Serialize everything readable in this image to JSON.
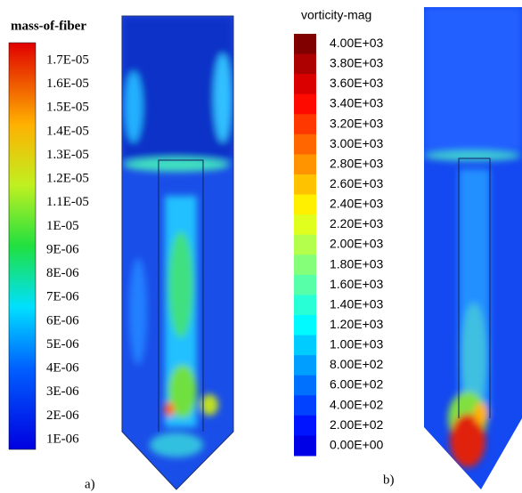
{
  "panels": [
    {
      "title": "mass-of-fiber",
      "levels": [
        "1.7E-05",
        "1.6E-05",
        "1.5E-05",
        "1.4E-05",
        "1.3E-05",
        "1.2E-05",
        "1.1E-05",
        "1E-05",
        "9E-06",
        "8E-06",
        "7E-06",
        "6E-06",
        "5E-06",
        "4E-06",
        "3E-06",
        "2E-06",
        "1E-06"
      ],
      "caption": "a)"
    },
    {
      "title": "vorticity-mag",
      "levels": [
        "4.00E+03",
        "3.80E+03",
        "3.60E+03",
        "3.40E+03",
        "3.20E+03",
        "3.00E+03",
        "2.80E+03",
        "2.60E+03",
        "2.40E+03",
        "2.20E+03",
        "2.00E+03",
        "1.80E+03",
        "1.60E+03",
        "1.40E+03",
        "1.20E+03",
        "1.00E+03",
        "8.00E+02",
        "6.00E+02",
        "4.00E+02",
        "2.00E+02",
        "0.00E+00"
      ],
      "caption": "b)"
    }
  ]
}
